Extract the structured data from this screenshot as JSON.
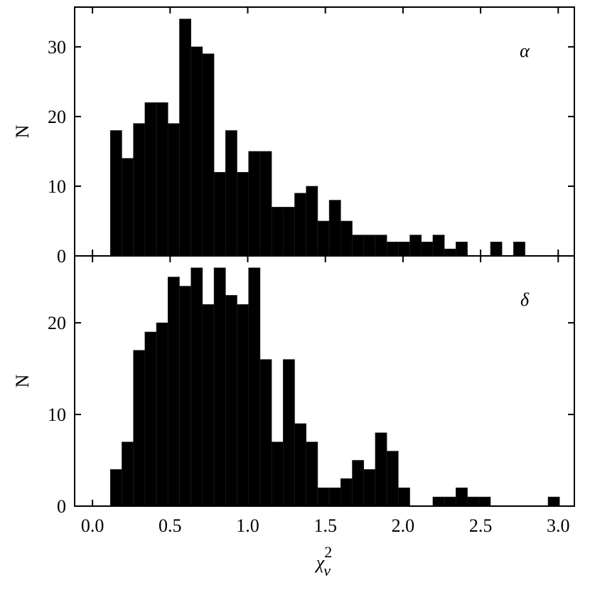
{
  "chart_data": [
    {
      "type": "histogram",
      "annotation": "α",
      "ylabel": "N",
      "color": "#000000",
      "bins": [
        0.115,
        0.1892,
        0.2634,
        0.3376,
        0.4118,
        0.486,
        0.5602,
        0.6344,
        0.7086,
        0.7828,
        0.857,
        0.9312,
        1.0054,
        1.0796,
        1.1538,
        1.228,
        1.3022,
        1.3764,
        1.4506,
        1.5248,
        1.599,
        1.6732,
        1.7474,
        1.8216,
        1.8958,
        1.97,
        2.0442,
        2.1184,
        2.1926,
        2.2668,
        2.341,
        2.4152,
        2.4894,
        2.5636,
        2.6378,
        2.712,
        2.7862,
        2.8604,
        2.9346,
        3.0088
      ],
      "values": [
        18,
        14,
        19,
        22,
        22,
        19,
        34,
        30,
        29,
        12,
        18,
        12,
        15,
        15,
        7,
        7,
        9,
        10,
        5,
        8,
        5,
        3,
        3,
        3,
        2,
        2,
        3,
        2,
        3,
        1,
        2,
        0,
        0,
        2,
        0,
        2,
        0,
        0,
        0
      ],
      "xlim": [
        -0.115,
        3.104
      ],
      "ylim": [
        0,
        35.7
      ],
      "yticks": [
        0,
        10,
        20,
        30
      ]
    },
    {
      "type": "histogram",
      "annotation": "δ",
      "ylabel": "N",
      "color": "#000000",
      "xlabel": {
        "base": "χ",
        "sub": "ν",
        "sup": "2"
      },
      "bins": [
        0.115,
        0.1892,
        0.2634,
        0.3376,
        0.4118,
        0.486,
        0.5602,
        0.6344,
        0.7086,
        0.7828,
        0.857,
        0.9312,
        1.0054,
        1.0796,
        1.1538,
        1.228,
        1.3022,
        1.3764,
        1.4506,
        1.5248,
        1.599,
        1.6732,
        1.7474,
        1.8216,
        1.8958,
        1.97,
        2.0442,
        2.1184,
        2.1926,
        2.2668,
        2.341,
        2.4152,
        2.4894,
        2.5636,
        2.6378,
        2.712,
        2.7862,
        2.8604,
        2.9346,
        3.0088
      ],
      "values": [
        4,
        7,
        17,
        19,
        20,
        25,
        24,
        26,
        22,
        26,
        23,
        22,
        26,
        16,
        7,
        16,
        9,
        7,
        2,
        2,
        3,
        5,
        4,
        8,
        6,
        2,
        0,
        0,
        1,
        1,
        2,
        1,
        1,
        0,
        0,
        0,
        0,
        0,
        1
      ],
      "xlim": [
        -0.115,
        3.104
      ],
      "ylim": [
        0,
        27.3
      ],
      "yticks": [
        0,
        10,
        20
      ],
      "xticks": [
        {
          "value": 0,
          "label": "0.0"
        },
        0.5,
        {
          "value": 1,
          "label": "1.0"
        },
        1.5,
        {
          "value": 2,
          "label": "2.0"
        },
        2.5,
        {
          "value": 3,
          "label": "3.0"
        }
      ]
    }
  ]
}
